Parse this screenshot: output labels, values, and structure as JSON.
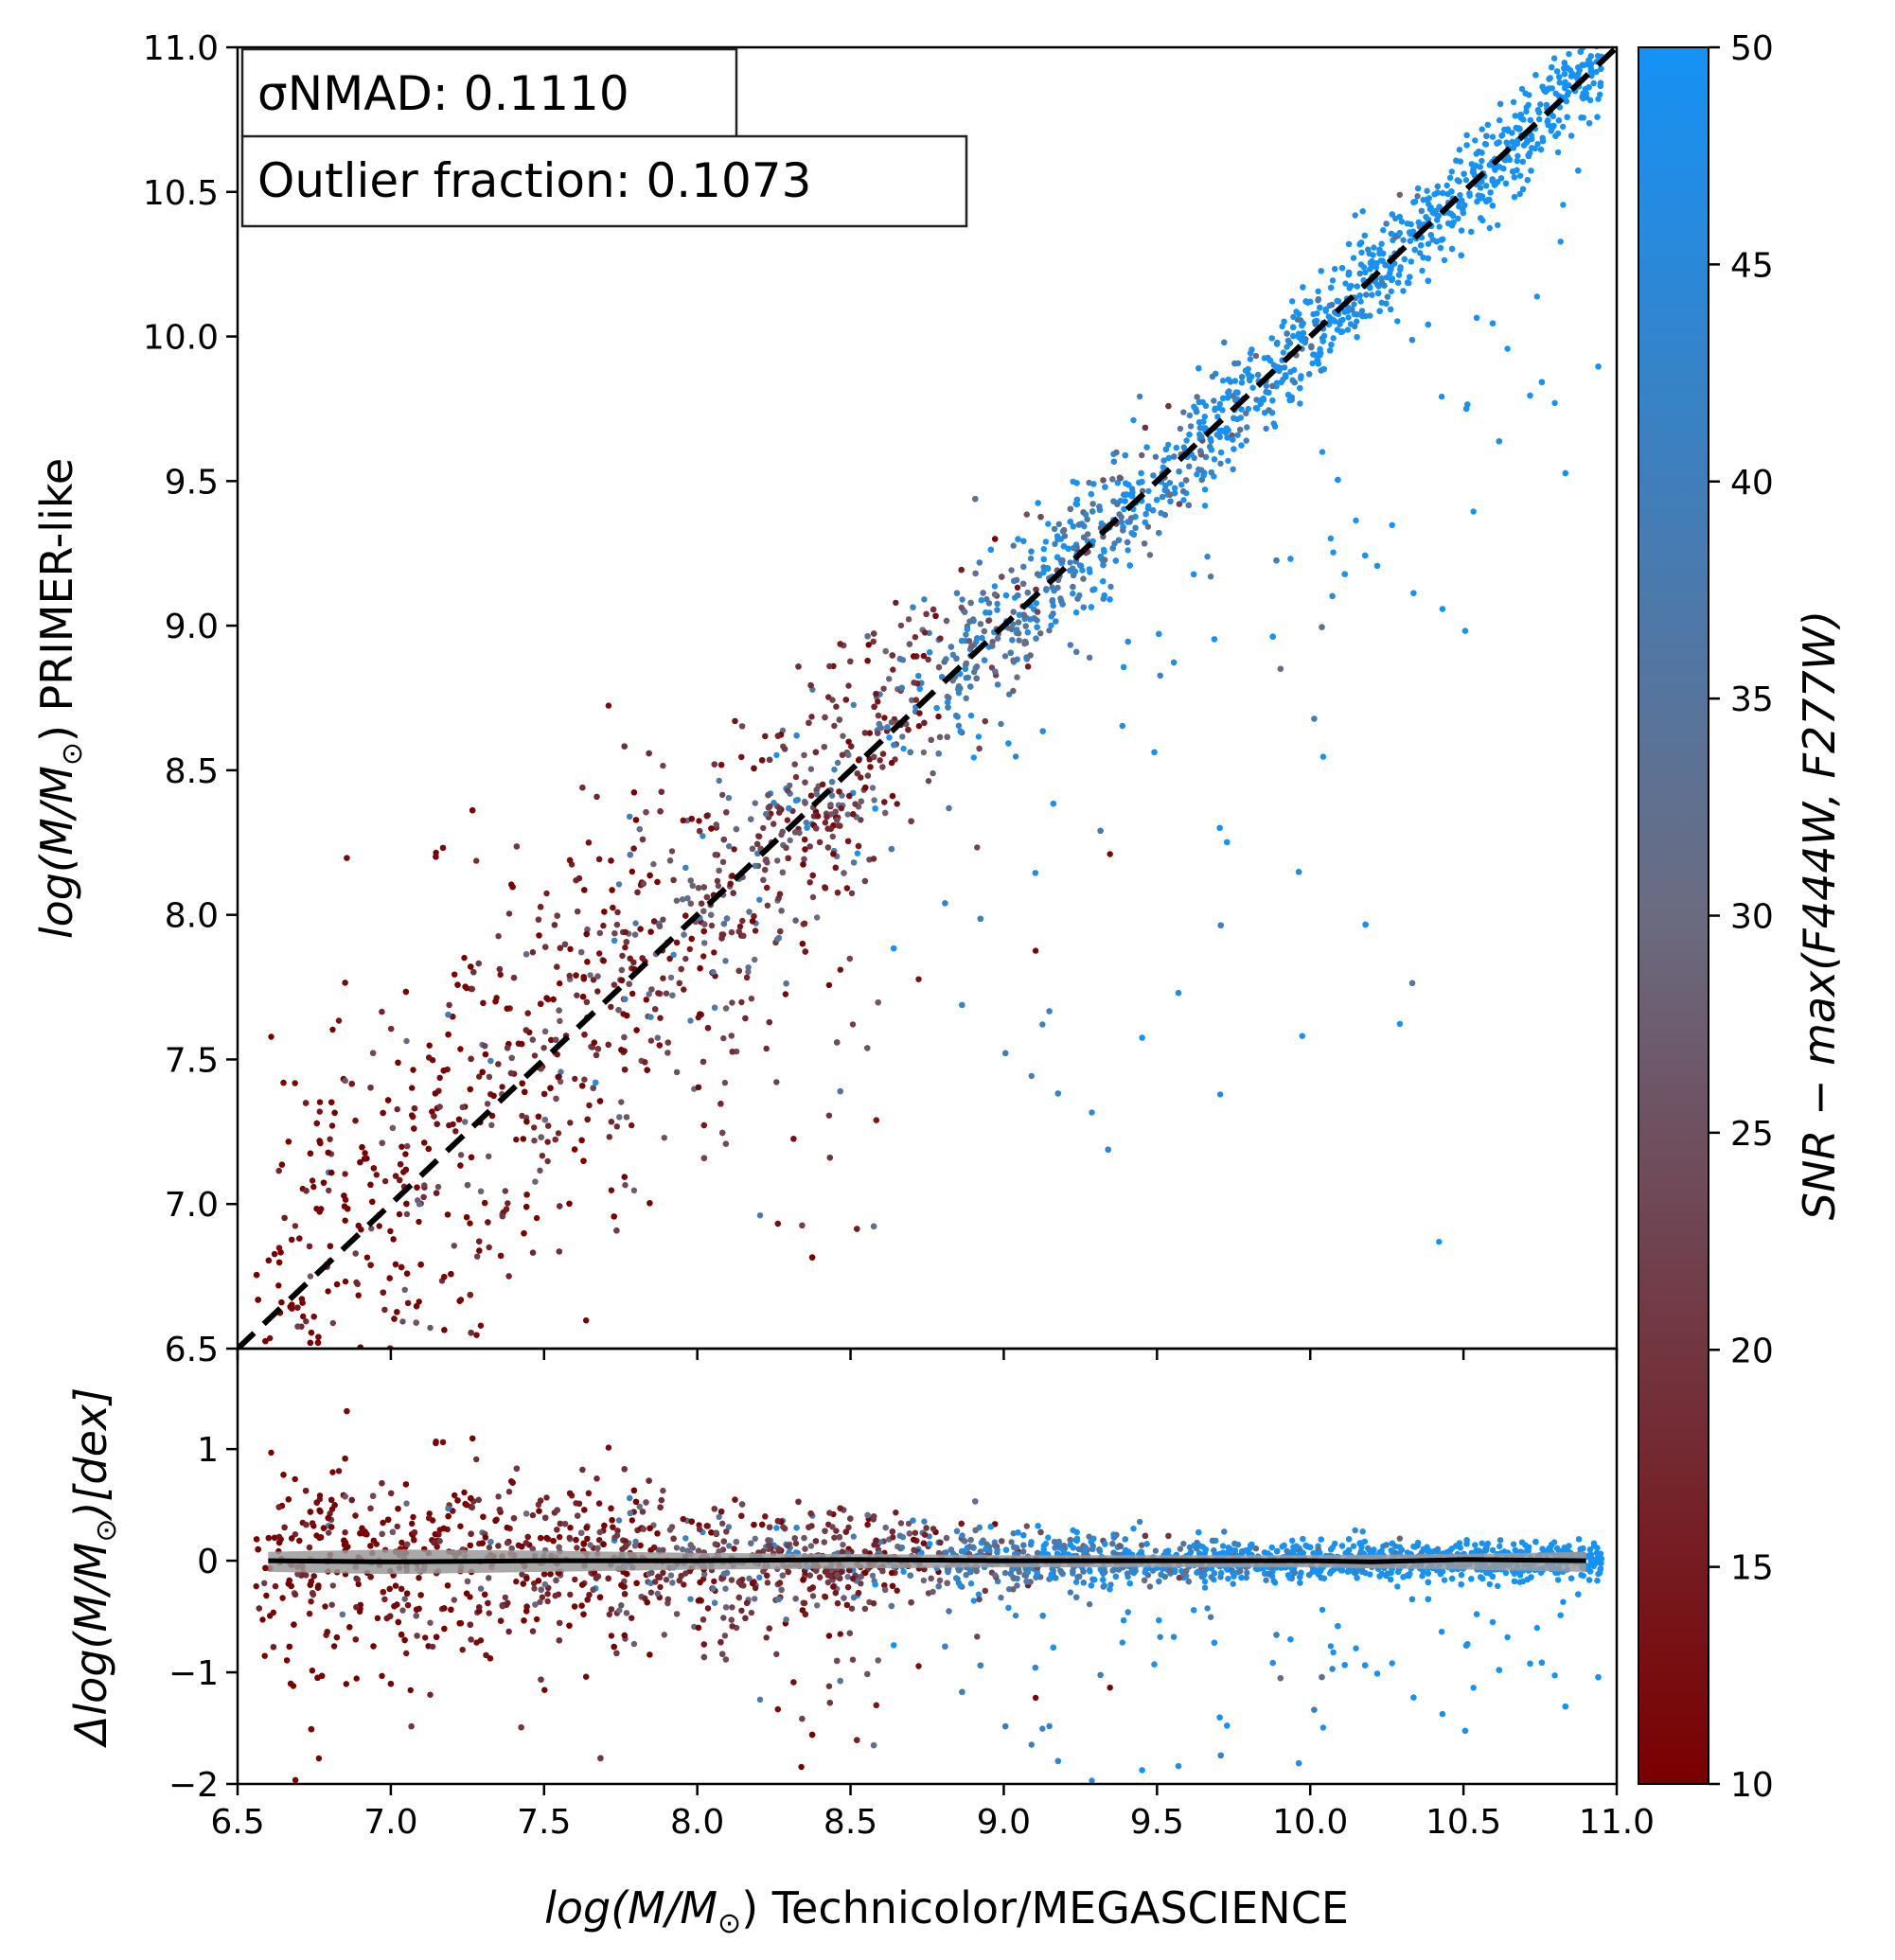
{
  "chart_data": [
    {
      "type": "scatter",
      "panel": "main",
      "xlabel_prefix": "log",
      "xlabel_middle": "(M/M",
      "xlabel_sub": "⊙",
      "xlabel_suffix": ") Technicolor/MEGASCIENCE",
      "ylabel_prefix": "log",
      "ylabel_middle": "(M/M",
      "ylabel_sub": "⊙",
      "ylabel_suffix": ") PRIMER-like",
      "xlim": [
        6.5,
        11.0
      ],
      "ylim": [
        6.5,
        11.0
      ],
      "xticks": [
        "6.5",
        "7.0",
        "7.5",
        "8.0",
        "8.5",
        "9.0",
        "9.5",
        "10.0",
        "10.5",
        "11.0"
      ],
      "yticks": [
        "6.5",
        "7.0",
        "7.5",
        "8.0",
        "8.5",
        "9.0",
        "9.5",
        "10.0",
        "10.5",
        "11.0"
      ],
      "one_to_one_line": {
        "x": [
          6.5,
          11.0
        ],
        "y": [
          6.5,
          11.0
        ],
        "style": "dashed",
        "color": "#000000"
      },
      "annotations": {
        "sigma_nmad": "σNMAD: 0.1110",
        "outlier_fraction": "Outlier fraction: 0.1073"
      },
      "points_note": "approx. several thousand galaxies clustered around the 1:1 line, color-coded by SNR"
    },
    {
      "type": "scatter",
      "panel": "residual",
      "ylabel_prefix": "Δlog",
      "ylabel_middle": "(M/M",
      "ylabel_sub": "⊙",
      "ylabel_suffix": ")[dex]",
      "xlim": [
        6.5,
        11.0
      ],
      "ylim": [
        -2.0,
        1.9
      ],
      "yticks": [
        "1",
        "0",
        "−1",
        "−2"
      ],
      "yticks_values": [
        1,
        0,
        -1,
        -2
      ],
      "median_line": {
        "x": [
          6.6,
          7.0,
          7.5,
          8.0,
          8.5,
          9.0,
          9.5,
          10.0,
          10.2,
          10.5,
          10.9
        ],
        "y": [
          0.0,
          -0.01,
          0.0,
          0.0,
          0.01,
          0.0,
          0.0,
          0.0,
          -0.01,
          0.01,
          0.0
        ]
      },
      "scatter_band": {
        "x": [
          6.6,
          7.0,
          7.5,
          8.0,
          8.5,
          9.0,
          9.5,
          10.0,
          10.5,
          10.9
        ],
        "upper": [
          0.08,
          0.1,
          0.09,
          0.07,
          0.06,
          0.05,
          0.05,
          0.05,
          0.06,
          0.08
        ],
        "lower": [
          -0.1,
          -0.12,
          -0.1,
          -0.08,
          -0.07,
          -0.06,
          -0.06,
          -0.06,
          -0.08,
          -0.1
        ]
      }
    }
  ],
  "colorbar": {
    "label_prefix": "SNR − max",
    "label_args": "(F444W, F277W)",
    "range": [
      10,
      50
    ],
    "ticks": [
      "10",
      "15",
      "20",
      "25",
      "30",
      "35",
      "40",
      "45",
      "50"
    ],
    "color_low": "#7a0000",
    "color_mid": "#6b6b80",
    "color_high": "#1592f5"
  }
}
